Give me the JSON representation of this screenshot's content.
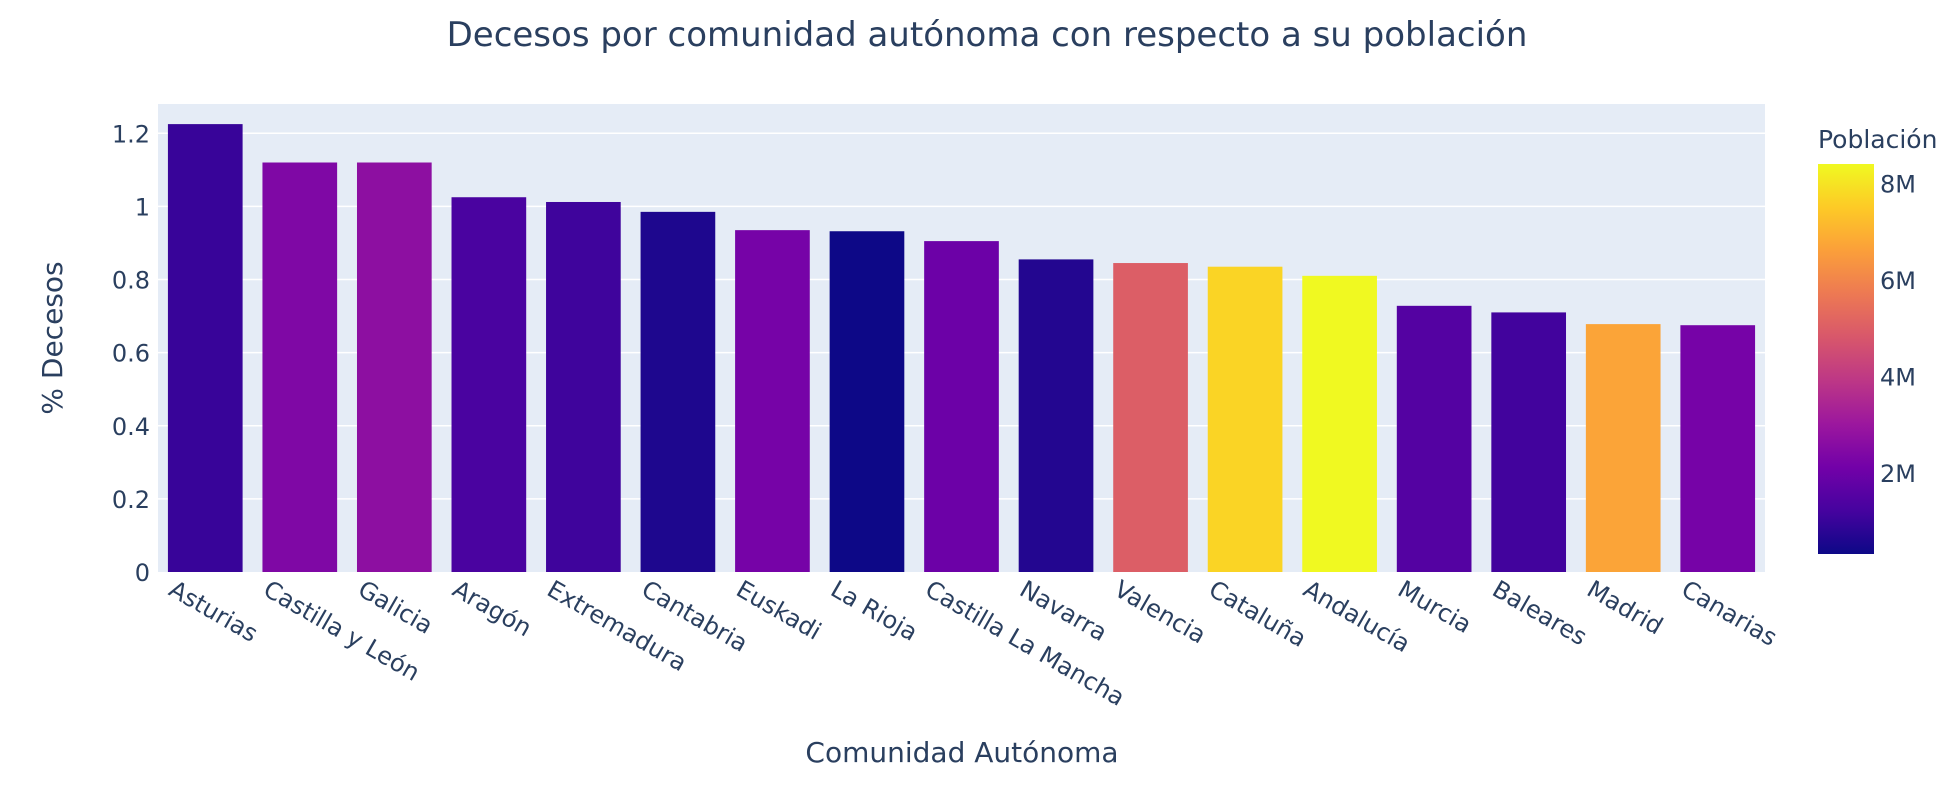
{
  "chart_data": {
    "type": "bar",
    "title": "Decesos por comunidad autónoma con respecto a su población",
    "xlabel": "Comunidad Autónoma",
    "ylabel": "% Decesos",
    "categories": [
      "Asturias",
      "Castilla y León",
      "Galicia",
      "Aragón",
      "Extremadura",
      "Cantabria",
      "Euskadi",
      "La Rioja",
      "Castilla La Mancha",
      "Navarra",
      "Valencia",
      "Cataluña",
      "Andalucía",
      "Murcia",
      "Baleares",
      "Madrid",
      "Canarias"
    ],
    "values": [
      1.225,
      1.12,
      1.12,
      1.025,
      1.012,
      0.985,
      0.935,
      0.932,
      0.905,
      0.855,
      0.845,
      0.835,
      0.81,
      0.728,
      0.71,
      0.678,
      0.675
    ],
    "color_values": [
      1.0,
      2.4,
      2.7,
      1.3,
      1.1,
      0.58,
      2.2,
      0.32,
      2.0,
      0.66,
      5.0,
      7.7,
      8.4,
      1.5,
      1.15,
      6.7,
      2.2
    ],
    "ylim": [
      0,
      1.28
    ],
    "yticks": [
      0,
      0.2,
      0.4,
      0.6,
      0.8,
      1,
      1.2
    ],
    "ytick_labels": [
      "0",
      "0.2",
      "0.4",
      "0.6",
      "0.8",
      "1",
      "1.2"
    ],
    "grid": true,
    "colorbar": {
      "title": "Población",
      "range": [
        0.32,
        8.4
      ],
      "ticks": [
        2,
        4,
        6,
        8
      ],
      "tick_labels": [
        "2M",
        "4M",
        "6M",
        "8M"
      ],
      "colorscale": [
        "#0d0887",
        "#46039f",
        "#7201a8",
        "#9c179e",
        "#bd3786",
        "#d8576b",
        "#ed7953",
        "#fb9f3a",
        "#fdca26",
        "#f0f921"
      ]
    },
    "plot_background": "#e5ecf6",
    "gridline_color": "#ffffff"
  }
}
